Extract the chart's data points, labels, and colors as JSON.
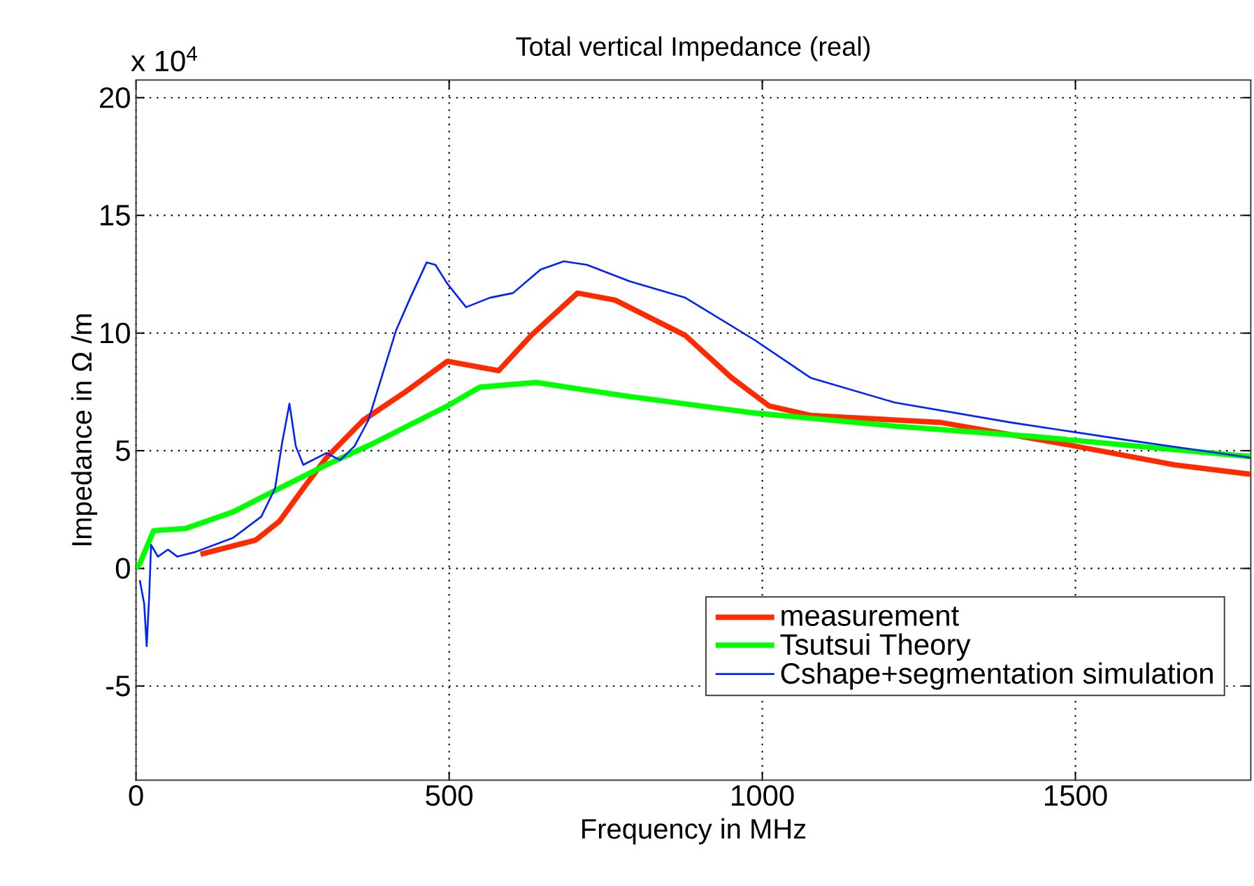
{
  "chart_data": {
    "type": "line",
    "title": "Total vertical Impedance (real)",
    "xlabel": "Frequency in MHz",
    "ylabel": "Impedance in Ω /m",
    "annotations": [
      "x 10$^{4}$"
    ],
    "xlim": [
      0,
      1780
    ],
    "ylim": [
      -9,
      20.75
    ],
    "xticks": [
      0,
      500,
      1000,
      1500
    ],
    "yticks": [
      -5,
      0,
      5,
      10,
      15,
      20
    ],
    "grid": true,
    "legend": "bottom right",
    "series": [
      {
        "name": "measurement",
        "color": "#ff2a00",
        "x": [
          103,
          191,
          229,
          267,
          304,
          363,
          430,
          497,
          579,
          631,
          705,
          765,
          877,
          951,
          1011,
          1077,
          1285,
          1479,
          1658,
          1780
        ],
        "values": [
          0.6,
          1.2,
          2.0,
          3.4,
          4.7,
          6.3,
          7.5,
          8.8,
          8.4,
          9.9,
          11.7,
          11.4,
          9.9,
          8.1,
          6.9,
          6.5,
          6.2,
          5.3,
          4.4,
          4.0
        ]
      },
      {
        "name": "Tsutsui Theory",
        "color": "#00ff00",
        "x": [
          0,
          6,
          28,
          80,
          155,
          229,
          304,
          378,
          452,
          497,
          549,
          639,
          713,
          788,
          988,
          1211,
          1434,
          1780
        ],
        "values": [
          0,
          0.2,
          1.6,
          1.7,
          2.4,
          3.4,
          4.4,
          5.3,
          6.3,
          6.9,
          7.7,
          7.9,
          7.6,
          7.3,
          6.6,
          6.05,
          5.6,
          4.75
        ]
      },
      {
        "name": "Cshape+segmentation simulation",
        "color": "#0022ff",
        "x": [
          6,
          13,
          17,
          21,
          24,
          35,
          51,
          66,
          95,
          155,
          200,
          222,
          233,
          245,
          255,
          267,
          304,
          326,
          349,
          371,
          415,
          438,
          464,
          478,
          497,
          527,
          565,
          602,
          646,
          683,
          720,
          788,
          877,
          988,
          1077,
          1211,
          1397,
          1583,
          1780
        ],
        "values": [
          -0.5,
          -1.5,
          -3.3,
          -1.2,
          1.0,
          0.5,
          0.8,
          0.5,
          0.7,
          1.3,
          2.2,
          3.4,
          5.3,
          7.0,
          5.2,
          4.4,
          4.9,
          4.6,
          5.2,
          6.3,
          10.1,
          11.5,
          13.0,
          12.9,
          12.1,
          11.1,
          11.5,
          11.7,
          12.7,
          13.05,
          12.9,
          12.2,
          11.5,
          9.7,
          8.1,
          7.05,
          6.2,
          5.45,
          4.7
        ]
      }
    ]
  }
}
